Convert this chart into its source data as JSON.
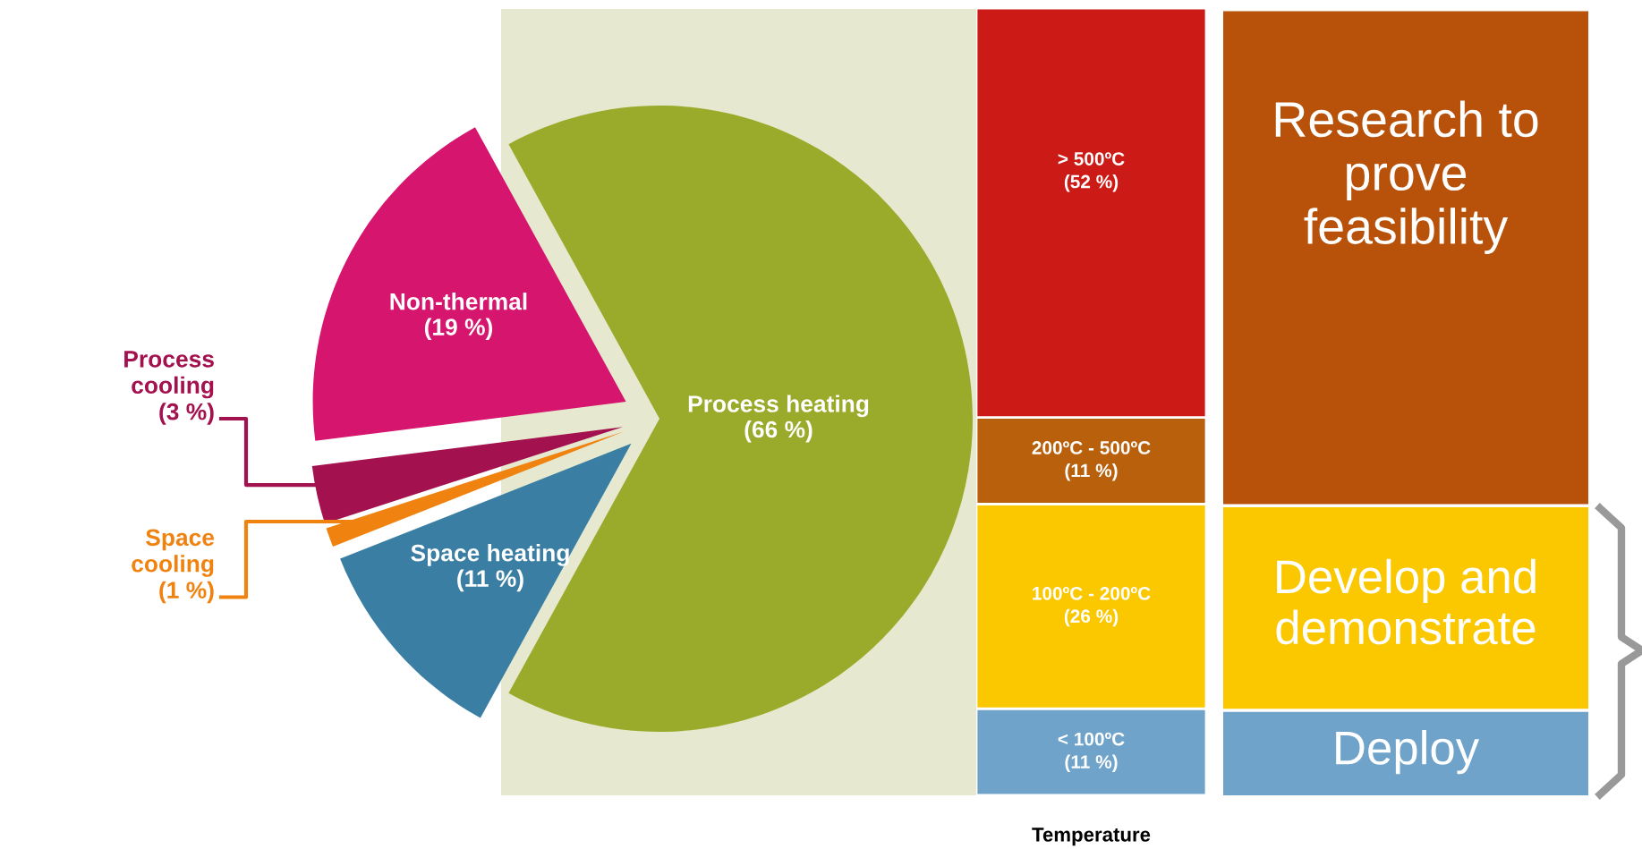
{
  "chart_data": [
    {
      "type": "pie",
      "categories": [
        "Process heating",
        "Non-thermal",
        "Process cooling",
        "Space cooling",
        "Space heating"
      ],
      "values": [
        66,
        19,
        3,
        1,
        11
      ],
      "colors": [
        "#9aaa2a",
        "#d6156e",
        "#a3124e",
        "#f0820f",
        "#3a7fa3"
      ],
      "value_labels": [
        "(66 %)",
        "(19 %)",
        "(3 %)",
        "(1 %)",
        "(11 %)"
      ]
    },
    {
      "type": "bar",
      "stacked": true,
      "xlabel": "Temperature",
      "categories": [
        null
      ],
      "series": [
        {
          "name": "< 100ºC",
          "color": "#6fa3c9",
          "values": [
            11
          ],
          "value_labels": [
            "(11 %)"
          ]
        },
        {
          "name": "100ºC - 200ºC",
          "color": "#fbc800",
          "values": [
            26
          ],
          "value_labels": [
            "(26 %)"
          ]
        },
        {
          "name": "200ºC - 500ºC",
          "color": "#b8600c",
          "values": [
            11
          ],
          "value_labels": [
            "(11 %)"
          ]
        },
        {
          "name": "> 500ºC",
          "color": "#cc1a16",
          "values": [
            52
          ],
          "value_labels": [
            "(52 %)"
          ]
        }
      ]
    },
    {
      "type": "other",
      "categories": [
        "Research to\nprove\nfeasibility",
        "Develop and\ndemonstrate",
        "Deploy"
      ],
      "colors": [
        "#b8520a",
        "#fbc800",
        "#6fa3c9"
      ]
    }
  ]
}
